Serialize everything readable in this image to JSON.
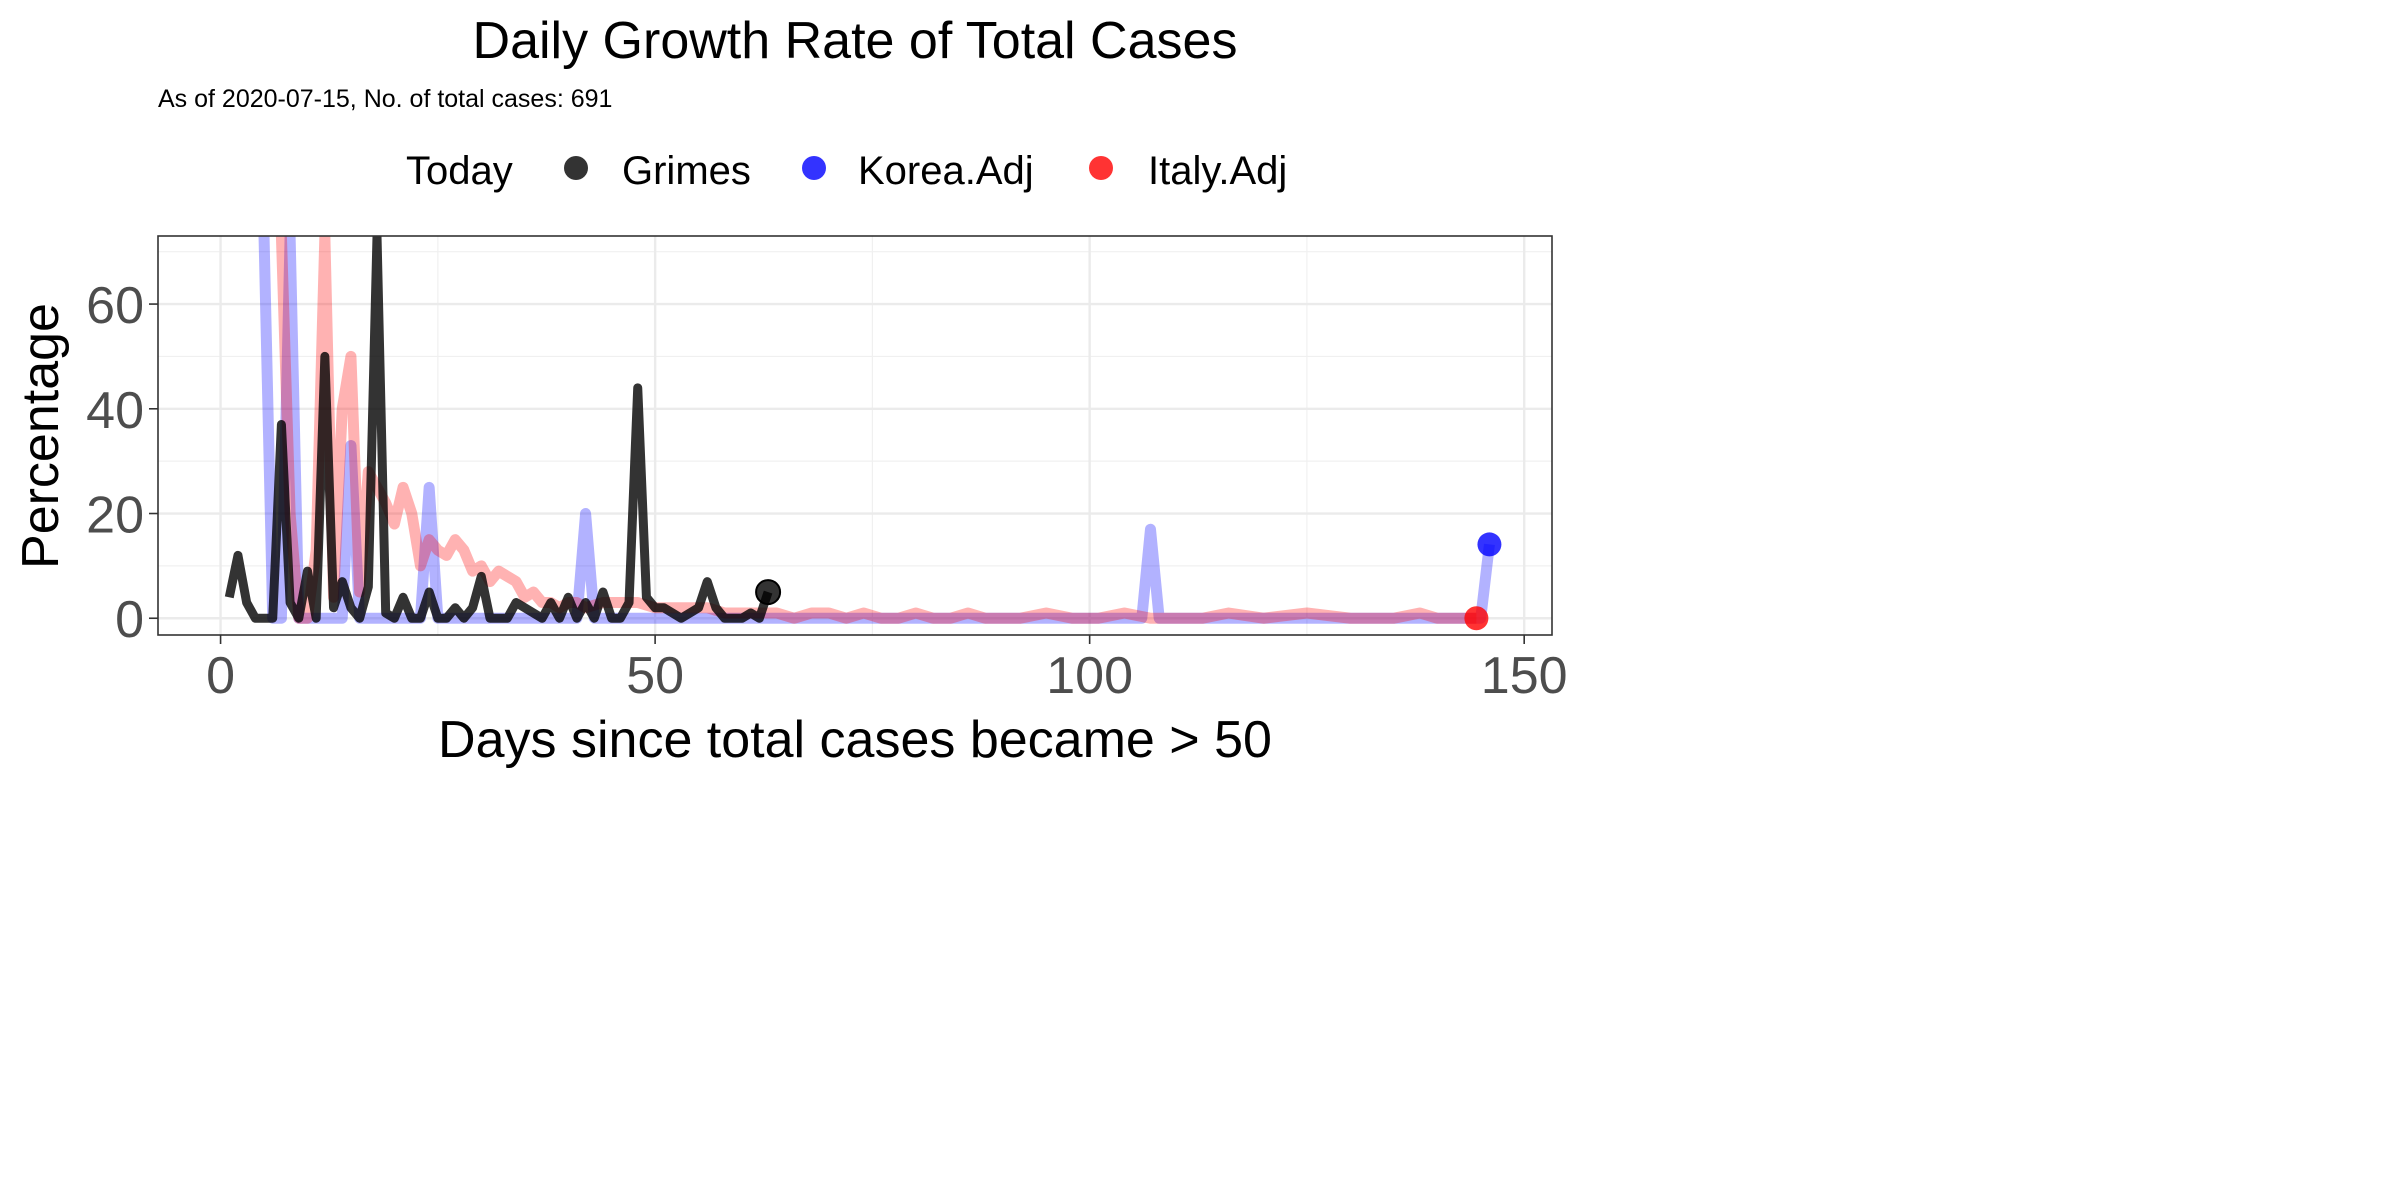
{
  "chart_data": {
    "type": "line",
    "title": "Daily Growth Rate of Total Cases",
    "subtitle": "As of 2020-07-15, No. of total cases: 691",
    "xlabel": "Days since total cases became > 50",
    "ylabel": "Percentage",
    "xlim": [
      -7.2,
      153.2
    ],
    "ylim": [
      -3.2,
      73
    ],
    "xticks": [
      0,
      50,
      100,
      150
    ],
    "yticks": [
      0,
      20,
      40,
      60
    ],
    "grid": true,
    "legend": {
      "placement": "top",
      "title": "Today",
      "entries": [
        "Grimes",
        "Korea.Adj",
        "Italy.Adj"
      ]
    },
    "series": [
      {
        "name": "Korea.Adj",
        "color": "#0000ff",
        "today": [
          146,
          14.1
        ],
        "points": [
          [
            5,
            73
          ],
          [
            6,
            0
          ],
          [
            7,
            0
          ],
          [
            8,
            73
          ],
          [
            9,
            0
          ],
          [
            10,
            0
          ],
          [
            11,
            0
          ],
          [
            12,
            0
          ],
          [
            13,
            0
          ],
          [
            14,
            0
          ],
          [
            15,
            33
          ],
          [
            16,
            0
          ],
          [
            17,
            0
          ],
          [
            18,
            0
          ],
          [
            19,
            0
          ],
          [
            20,
            0
          ],
          [
            21,
            0
          ],
          [
            22,
            0
          ],
          [
            23,
            0
          ],
          [
            24,
            25
          ],
          [
            25,
            0
          ],
          [
            26,
            0
          ],
          [
            27,
            0
          ],
          [
            28,
            0
          ],
          [
            29,
            0
          ],
          [
            30,
            0
          ],
          [
            31,
            0
          ],
          [
            32,
            0
          ],
          [
            33,
            0
          ],
          [
            34,
            0
          ],
          [
            35,
            0
          ],
          [
            36,
            0
          ],
          [
            37,
            0
          ],
          [
            38,
            0
          ],
          [
            39,
            0
          ],
          [
            40,
            0
          ],
          [
            41,
            0
          ],
          [
            42,
            20
          ],
          [
            43,
            0
          ],
          [
            44,
            0
          ],
          [
            45,
            0
          ],
          [
            50,
            0
          ],
          [
            60,
            0
          ],
          [
            70,
            0
          ],
          [
            80,
            0
          ],
          [
            90,
            0
          ],
          [
            100,
            0
          ],
          [
            106,
            0
          ],
          [
            107,
            17
          ],
          [
            108,
            0
          ],
          [
            110,
            0
          ],
          [
            120,
            0
          ],
          [
            130,
            0
          ],
          [
            140,
            0
          ],
          [
            145,
            0
          ],
          [
            146,
            14.1
          ]
        ]
      },
      {
        "name": "Italy.Adj",
        "color": "#ff0000",
        "today": [
          144.5,
          0
        ],
        "points": [
          [
            7,
            73
          ],
          [
            8,
            20
          ],
          [
            9,
            0
          ],
          [
            10,
            0
          ],
          [
            11,
            13
          ],
          [
            12,
            73
          ],
          [
            13,
            4
          ],
          [
            14,
            40
          ],
          [
            15,
            50
          ],
          [
            16,
            5
          ],
          [
            17,
            28
          ],
          [
            18,
            25
          ],
          [
            19,
            22
          ],
          [
            20,
            18
          ],
          [
            21,
            25
          ],
          [
            22,
            20
          ],
          [
            23,
            10
          ],
          [
            24,
            15
          ],
          [
            25,
            13
          ],
          [
            26,
            12
          ],
          [
            27,
            15
          ],
          [
            28,
            13
          ],
          [
            29,
            9
          ],
          [
            30,
            10
          ],
          [
            31,
            7
          ],
          [
            32,
            9
          ],
          [
            33,
            8
          ],
          [
            34,
            7
          ],
          [
            35,
            4
          ],
          [
            36,
            5
          ],
          [
            37,
            3
          ],
          [
            38,
            3
          ],
          [
            39,
            2
          ],
          [
            40,
            3
          ],
          [
            41,
            3
          ],
          [
            42,
            2
          ],
          [
            44,
            3
          ],
          [
            46,
            3
          ],
          [
            48,
            3
          ],
          [
            50,
            2
          ],
          [
            52,
            2
          ],
          [
            54,
            2
          ],
          [
            56,
            2
          ],
          [
            58,
            1
          ],
          [
            60,
            1
          ],
          [
            62,
            1
          ],
          [
            64,
            1
          ],
          [
            66,
            0
          ],
          [
            68,
            1
          ],
          [
            70,
            1
          ],
          [
            72,
            0
          ],
          [
            74,
            1
          ],
          [
            76,
            0
          ],
          [
            78,
            0
          ],
          [
            80,
            1
          ],
          [
            82,
            0
          ],
          [
            84,
            0
          ],
          [
            86,
            1
          ],
          [
            88,
            0
          ],
          [
            90,
            0
          ],
          [
            92,
            0
          ],
          [
            95,
            1
          ],
          [
            98,
            0
          ],
          [
            101,
            0
          ],
          [
            104,
            1
          ],
          [
            107,
            0
          ],
          [
            110,
            0
          ],
          [
            113,
            0
          ],
          [
            116,
            1
          ],
          [
            120,
            0
          ],
          [
            125,
            1
          ],
          [
            130,
            0
          ],
          [
            135,
            0
          ],
          [
            138,
            1
          ],
          [
            140,
            0
          ],
          [
            144.5,
            0
          ]
        ]
      },
      {
        "name": "Grimes",
        "color": "#000000",
        "today": [
          63,
          5
        ],
        "points": [
          [
            1,
            4
          ],
          [
            2,
            12
          ],
          [
            3,
            3
          ],
          [
            4,
            0
          ],
          [
            5,
            0
          ],
          [
            6,
            0
          ],
          [
            7,
            37
          ],
          [
            8,
            3
          ],
          [
            9,
            0
          ],
          [
            10,
            9
          ],
          [
            11,
            0
          ],
          [
            12,
            50
          ],
          [
            13,
            2
          ],
          [
            14,
            7
          ],
          [
            15,
            2
          ],
          [
            16,
            0
          ],
          [
            17,
            6
          ],
          [
            18,
            73
          ],
          [
            19,
            1
          ],
          [
            20,
            0
          ],
          [
            21,
            4
          ],
          [
            22,
            0
          ],
          [
            23,
            0
          ],
          [
            24,
            5
          ],
          [
            25,
            0
          ],
          [
            26,
            0
          ],
          [
            27,
            2
          ],
          [
            28,
            0
          ],
          [
            29,
            2
          ],
          [
            30,
            8
          ],
          [
            31,
            0
          ],
          [
            32,
            0
          ],
          [
            33,
            0
          ],
          [
            34,
            3
          ],
          [
            35,
            2
          ],
          [
            36,
            1
          ],
          [
            37,
            0
          ],
          [
            38,
            3
          ],
          [
            39,
            0
          ],
          [
            40,
            4
          ],
          [
            41,
            0
          ],
          [
            42,
            3
          ],
          [
            43,
            0
          ],
          [
            44,
            5
          ],
          [
            45,
            0
          ],
          [
            46,
            0
          ],
          [
            47,
            3
          ],
          [
            48,
            44
          ],
          [
            49,
            4
          ],
          [
            50,
            2
          ],
          [
            51,
            2
          ],
          [
            52,
            1
          ],
          [
            53,
            0
          ],
          [
            54,
            1
          ],
          [
            55,
            2
          ],
          [
            56,
            7
          ],
          [
            57,
            2
          ],
          [
            58,
            0
          ],
          [
            59,
            0
          ],
          [
            60,
            0
          ],
          [
            61,
            1
          ],
          [
            62,
            0
          ],
          [
            63,
            5
          ]
        ]
      }
    ]
  }
}
